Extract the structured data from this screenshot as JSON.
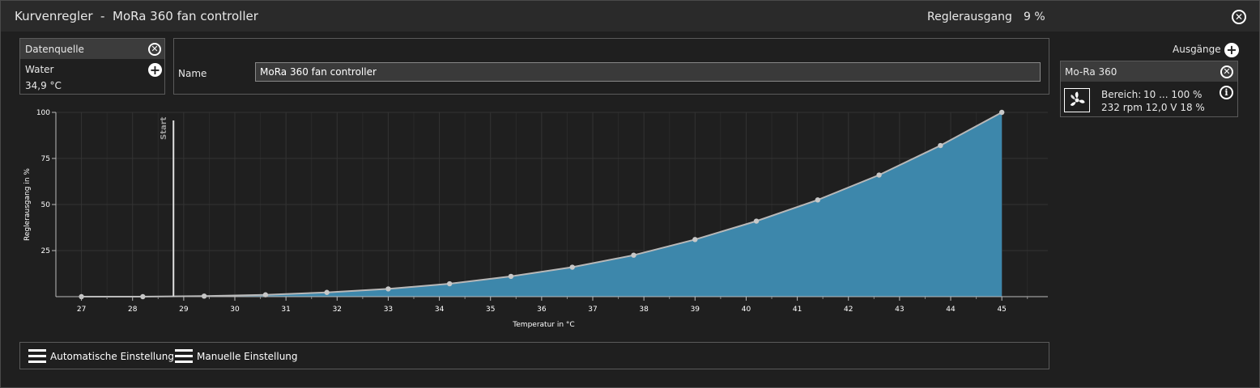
{
  "window": {
    "title": "Kurvenregler  -  MoRa 360 fan controller",
    "output_label": "Reglerausgang",
    "output_value": "9 %"
  },
  "datasource": {
    "header": "Datenquelle",
    "sensor_name": "Water",
    "sensor_value": "34,9 °C"
  },
  "name_field": {
    "label": "Name",
    "value": "MoRa 360 fan controller"
  },
  "outputs": {
    "header": "Ausgänge",
    "items": [
      {
        "name": "Mo-Ra 360",
        "range_label": "Bereich:",
        "range_value": "10 ... 100  %",
        "status": "232 rpm  12,0 V  18 %"
      }
    ]
  },
  "bottom": {
    "auto_label": "Automatische Einstellung",
    "manual_label": "Manuelle Einstellung"
  },
  "chart_data": {
    "type": "area",
    "xlabel": "Temperatur in °C",
    "ylabel": "Reglerausgang in %",
    "xlim": [
      26.5,
      45.9
    ],
    "ylim": [
      0,
      100
    ],
    "xticks": [
      27,
      28,
      29,
      30,
      31,
      32,
      33,
      34,
      35,
      36,
      37,
      38,
      39,
      40,
      41,
      42,
      43,
      44,
      45
    ],
    "yticks": [
      25,
      50,
      75,
      100
    ],
    "start_marker": {
      "x": 28.8,
      "label": "Start"
    },
    "points": [
      {
        "x": 27.0,
        "y": 0
      },
      {
        "x": 28.2,
        "y": 0
      },
      {
        "x": 29.4,
        "y": 0.3
      },
      {
        "x": 30.6,
        "y": 1
      },
      {
        "x": 31.8,
        "y": 2.3
      },
      {
        "x": 33.0,
        "y": 4.2
      },
      {
        "x": 34.2,
        "y": 7
      },
      {
        "x": 35.4,
        "y": 11
      },
      {
        "x": 36.6,
        "y": 16
      },
      {
        "x": 37.8,
        "y": 22.5
      },
      {
        "x": 39.0,
        "y": 31
      },
      {
        "x": 40.2,
        "y": 41
      },
      {
        "x": 41.4,
        "y": 52.5
      },
      {
        "x": 42.6,
        "y": 66
      },
      {
        "x": 43.8,
        "y": 82
      },
      {
        "x": 45.0,
        "y": 100
      }
    ],
    "colors": {
      "fill": "#3d87ab",
      "line": "#b8b8b8",
      "grid": "#333333"
    }
  }
}
